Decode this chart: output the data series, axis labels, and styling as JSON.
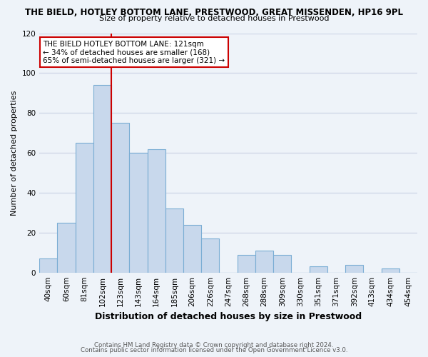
{
  "title": "THE BIELD, HOTLEY BOTTOM LANE, PRESTWOOD, GREAT MISSENDEN, HP16 9PL",
  "subtitle": "Size of property relative to detached houses in Prestwood",
  "xlabel": "Distribution of detached houses by size in Prestwood",
  "ylabel": "Number of detached properties",
  "bar_labels": [
    "40sqm",
    "60sqm",
    "81sqm",
    "102sqm",
    "123sqm",
    "143sqm",
    "164sqm",
    "185sqm",
    "206sqm",
    "226sqm",
    "247sqm",
    "268sqm",
    "288sqm",
    "309sqm",
    "330sqm",
    "351sqm",
    "371sqm",
    "392sqm",
    "413sqm",
    "434sqm",
    "454sqm"
  ],
  "bar_values": [
    7,
    25,
    65,
    94,
    75,
    60,
    62,
    32,
    24,
    17,
    0,
    9,
    11,
    9,
    0,
    3,
    0,
    4,
    0,
    2,
    0
  ],
  "bar_color": "#c8d8ec",
  "bar_edgecolor": "#7aadd4",
  "reference_line_x": 3.5,
  "annotation_title": "THE BIELD HOTLEY BOTTOM LANE: 121sqm",
  "annotation_line1": "← 34% of detached houses are smaller (168)",
  "annotation_line2": "65% of semi-detached houses are larger (321) →",
  "annotation_box_color": "#ffffff",
  "annotation_box_edgecolor": "#cc0000",
  "vline_color": "#cc0000",
  "ylim": [
    0,
    120
  ],
  "yticks": [
    0,
    20,
    40,
    60,
    80,
    100,
    120
  ],
  "background_color": "#eef3f9",
  "grid_color": "#d0d8e8",
  "footer1": "Contains HM Land Registry data © Crown copyright and database right 2024.",
  "footer2": "Contains public sector information licensed under the Open Government Licence v3.0."
}
